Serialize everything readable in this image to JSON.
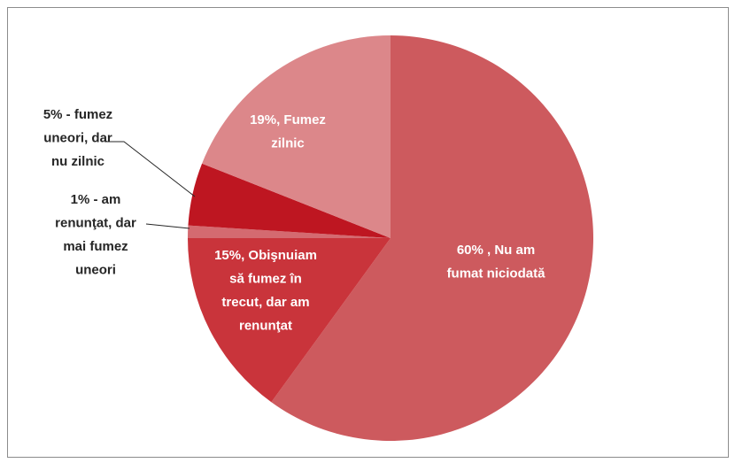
{
  "chart_data": {
    "type": "pie",
    "values": [
      60,
      15,
      1,
      5,
      19
    ],
    "value_labels": [
      "60% , Nu am\nfumat niciodată",
      "15%, Obişnuiam\nsă fumez în\ntrecut, dar am\nrenunţat",
      "1% - am\nrenunţat, dar\nmai fumez\nuneori",
      "5% - fumez\nuneori, dar\nnu zilnic",
      "19%, Fumez\nzilnic"
    ],
    "colors": [
      "#cd5a5e",
      "#c9343b",
      "#d46a70",
      "#be1621",
      "#dc878a"
    ]
  }
}
